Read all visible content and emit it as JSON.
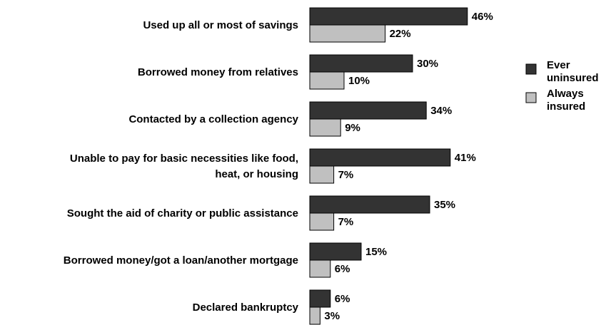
{
  "chart_data": {
    "type": "bar",
    "orientation": "horizontal",
    "categories": [
      [
        "Used up all or most of savings"
      ],
      [
        "Borrowed money from relatives"
      ],
      [
        "Contacted by a collection agency"
      ],
      [
        "Unable to pay for basic necessities like food,",
        "heat, or housing"
      ],
      [
        "Sought the aid of charity or public assistance"
      ],
      [
        "Borrowed money/got a loan/another mortgage"
      ],
      [
        "Declared bankruptcy"
      ]
    ],
    "series": [
      {
        "name": "Ever uninsured",
        "legend_lines": [
          "Ever",
          "uninsured"
        ],
        "color": "#333333",
        "values": [
          46,
          30,
          34,
          41,
          35,
          15,
          6
        ],
        "labels": [
          "46%",
          "30%",
          "34%",
          "41%",
          "35%",
          "15%",
          "6%"
        ]
      },
      {
        "name": "Always insured",
        "legend_lines": [
          "Always",
          "insured"
        ],
        "color": "#c0c0c0",
        "values": [
          22,
          10,
          9,
          7,
          7,
          6,
          3
        ],
        "labels": [
          "22%",
          "10%",
          "9%",
          "7%",
          "7%",
          "6%",
          "3%"
        ]
      }
    ],
    "xlim": [
      0,
      100
    ],
    "grid": false,
    "legend_position": "right"
  }
}
